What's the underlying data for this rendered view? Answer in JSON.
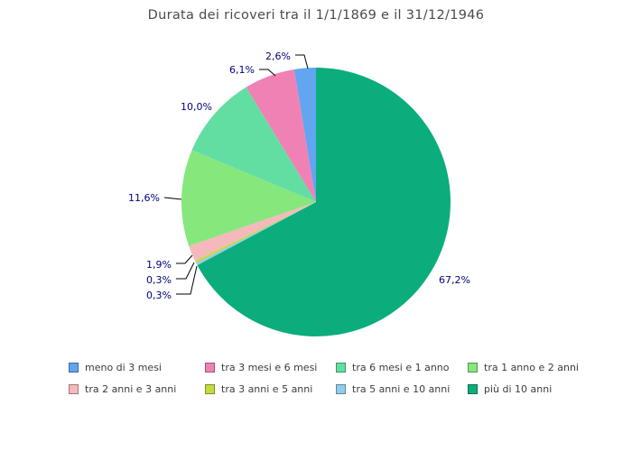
{
  "chart_data": {
    "type": "pie",
    "title": "Durata dei ricoveri tra il 1/1/1869 e il 31/12/1946",
    "unit": "%",
    "start_angle_deg": 90,
    "direction": "counterclockwise",
    "legend_position": "bottom",
    "grid": false,
    "slices": [
      {
        "name": "meno di 3 mesi",
        "value": 2.6,
        "label": "2,6%",
        "color": "#62A5F0"
      },
      {
        "name": "tra 3 mesi e 6 mesi",
        "value": 6.1,
        "label": "6,1%",
        "color": "#F081B5"
      },
      {
        "name": "tra 6 mesi e 1 anno",
        "value": 10.0,
        "label": "10,0%",
        "color": "#63DEA2"
      },
      {
        "name": "tra 1 anno e 2 anni",
        "value": 11.6,
        "label": "11,6%",
        "color": "#86E77C"
      },
      {
        "name": "tra 2 anni e 3 anni",
        "value": 1.9,
        "label": "1,9%",
        "color": "#F5B9BB"
      },
      {
        "name": "tra 3 anni e 5 anni",
        "value": 0.3,
        "label": "0,3%",
        "color": "#C8D943"
      },
      {
        "name": "tra 5 anni e 10 anni",
        "value": 0.3,
        "label": "0,3%",
        "color": "#92CCEA"
      },
      {
        "name": "più di 10 anni",
        "value": 67.2,
        "label": "67,2%",
        "color": "#0BAD7C"
      }
    ]
  },
  "colors": {
    "title_text": "#4b4b4b",
    "slice_label_text": "#000080",
    "legend_text": "#3c3c3c",
    "leader_line": "#000000",
    "background": "#ffffff"
  }
}
